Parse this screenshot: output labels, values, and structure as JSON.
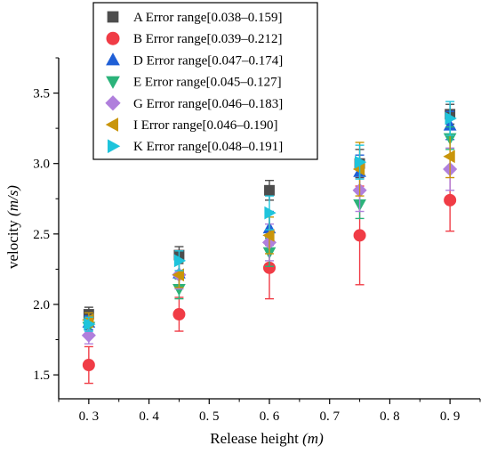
{
  "chart_data": {
    "type": "scatter",
    "xlabel_main": "Release height ",
    "xlabel_unit": "(m)",
    "ylabel_main": "velocity ",
    "ylabel_unit": "(m/s)",
    "xlim": [
      0.25,
      0.95
    ],
    "ylim": [
      1.33,
      3.75
    ],
    "xticks": [
      0.3,
      0.4,
      0.5,
      0.6,
      0.7,
      0.8,
      0.9
    ],
    "xtick_labels": [
      "0. 3",
      "0. 4",
      "0. 5",
      "0. 6",
      "0. 7",
      "0. 8",
      "0. 9"
    ],
    "yticks": [
      1.5,
      2.0,
      2.5,
      3.0,
      3.5
    ],
    "ytick_labels": [
      "1.5",
      "2.0",
      "2.5",
      "3.0",
      "3.5"
    ],
    "grid": false,
    "legend_position": "top-left",
    "series": [
      {
        "label": "A Error range[0.038–0.159]",
        "marker": "square",
        "color": "#4d4d4d",
        "x": [
          0.3,
          0.45,
          0.6,
          0.75,
          0.9
        ],
        "y": [
          1.93,
          2.35,
          2.81,
          3.0,
          3.35
        ],
        "err": [
          0.05,
          0.06,
          0.07,
          0.1,
          0.07
        ]
      },
      {
        "label": "B Error range[0.039–0.212]",
        "marker": "circle",
        "color": "#f03c46",
        "x": [
          0.3,
          0.45,
          0.6,
          0.75,
          0.9
        ],
        "y": [
          1.57,
          1.93,
          2.26,
          2.49,
          2.74
        ],
        "err": [
          0.13,
          0.12,
          0.22,
          0.35,
          0.22
        ]
      },
      {
        "label": "D Error range[0.047–0.174]",
        "marker": "triangle-up",
        "color": "#1f5fd6",
        "x": [
          0.3,
          0.45,
          0.6,
          0.75,
          0.9
        ],
        "y": [
          1.87,
          2.22,
          2.54,
          2.94,
          3.27
        ],
        "err": [
          0.05,
          0.08,
          0.12,
          0.12,
          0.1
        ]
      },
      {
        "label": "E Error range[0.045–0.127]",
        "marker": "triangle-down",
        "color": "#2bb37a",
        "x": [
          0.3,
          0.45,
          0.6,
          0.75,
          0.9
        ],
        "y": [
          1.84,
          2.11,
          2.37,
          2.71,
          3.18
        ],
        "err": [
          0.05,
          0.07,
          0.1,
          0.1,
          0.08
        ]
      },
      {
        "label": "G Error range[0.046–0.183]",
        "marker": "diamond",
        "color": "#b07fdc",
        "x": [
          0.3,
          0.45,
          0.6,
          0.75,
          0.9
        ],
        "y": [
          1.78,
          2.21,
          2.44,
          2.81,
          2.96
        ],
        "err": [
          0.06,
          0.1,
          0.13,
          0.15,
          0.15
        ]
      },
      {
        "label": "I Error range[0.046–0.190]",
        "marker": "triangle-left",
        "color": "#c9950b",
        "x": [
          0.3,
          0.45,
          0.6,
          0.75,
          0.9
        ],
        "y": [
          1.89,
          2.21,
          2.49,
          2.96,
          3.05
        ],
        "err": [
          0.05,
          0.09,
          0.13,
          0.19,
          0.15
        ]
      },
      {
        "label": "K Error range[0.048–0.191]",
        "marker": "triangle-right",
        "color": "#1ec4dc",
        "x": [
          0.3,
          0.45,
          0.6,
          0.75,
          0.9
        ],
        "y": [
          1.86,
          2.31,
          2.65,
          3.01,
          3.32
        ],
        "err": [
          0.05,
          0.07,
          0.12,
          0.12,
          0.12
        ]
      }
    ]
  }
}
